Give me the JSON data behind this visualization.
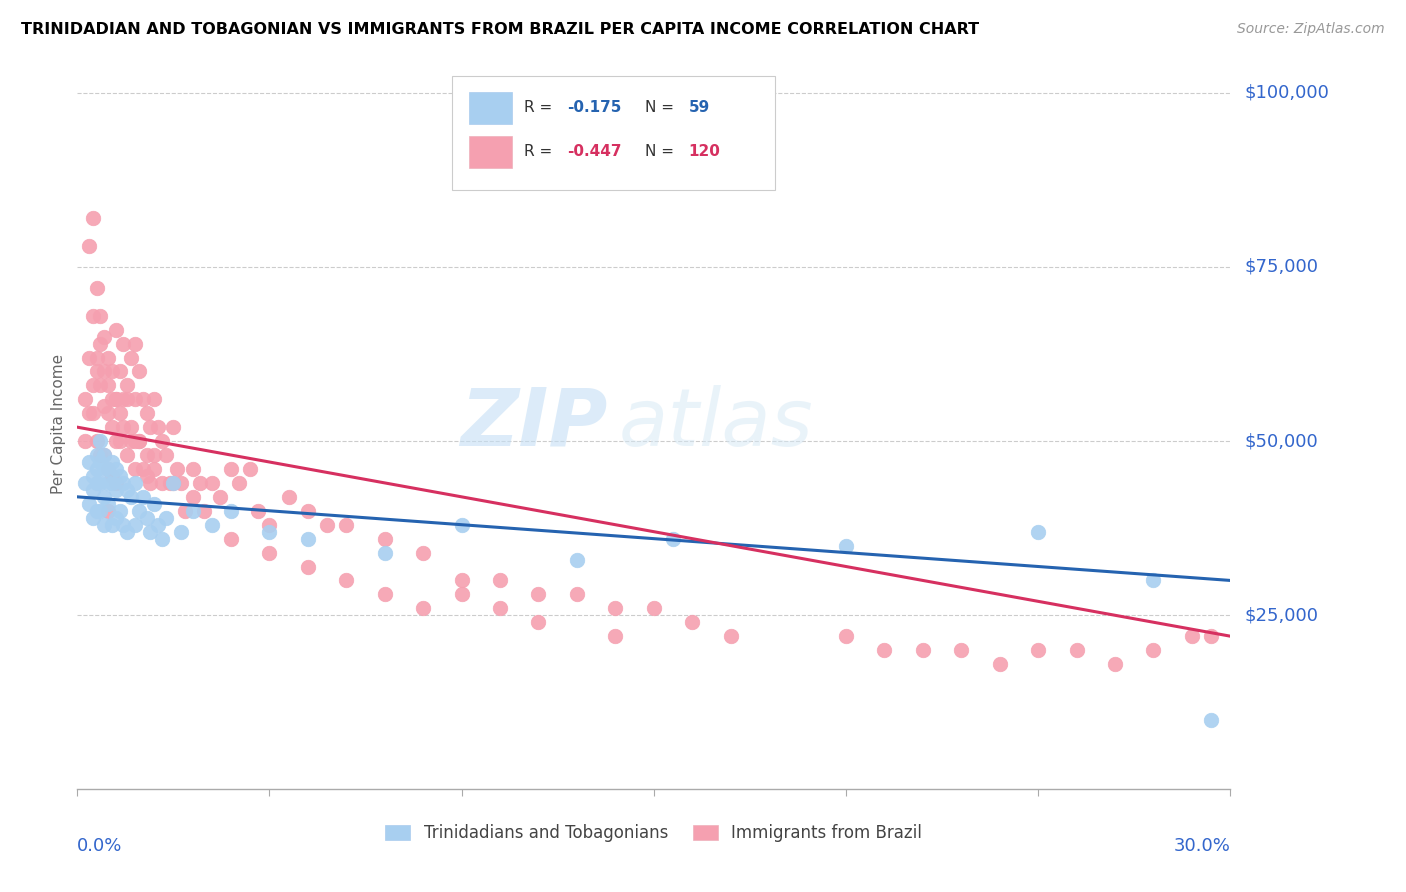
{
  "title": "TRINIDADIAN AND TOBAGONIAN VS IMMIGRANTS FROM BRAZIL PER CAPITA INCOME CORRELATION CHART",
  "source": "Source: ZipAtlas.com",
  "ylabel": "Per Capita Income",
  "xmin": 0.0,
  "xmax": 0.3,
  "ymin": 0,
  "ymax": 105000,
  "color_blue": "#a8cff0",
  "color_pink": "#f5a0b0",
  "line_blue": "#2563b0",
  "line_pink": "#d63060",
  "legend_label_blue": "Trinidadians and Tobagonians",
  "legend_label_pink": "Immigrants from Brazil",
  "watermark_zip": "ZIP",
  "watermark_atlas": "atlas",
  "blue_intercept": 42000,
  "blue_slope": -40000,
  "pink_intercept": 52000,
  "pink_slope": -100000,
  "blue_scatter_x": [
    0.002,
    0.003,
    0.003,
    0.004,
    0.004,
    0.004,
    0.005,
    0.005,
    0.005,
    0.005,
    0.006,
    0.006,
    0.006,
    0.006,
    0.007,
    0.007,
    0.007,
    0.007,
    0.008,
    0.008,
    0.008,
    0.009,
    0.009,
    0.009,
    0.01,
    0.01,
    0.01,
    0.011,
    0.011,
    0.012,
    0.012,
    0.013,
    0.013,
    0.014,
    0.015,
    0.015,
    0.016,
    0.017,
    0.018,
    0.019,
    0.02,
    0.021,
    0.022,
    0.023,
    0.025,
    0.027,
    0.03,
    0.035,
    0.04,
    0.05,
    0.06,
    0.08,
    0.1,
    0.13,
    0.155,
    0.2,
    0.25,
    0.28,
    0.295
  ],
  "blue_scatter_y": [
    44000,
    47000,
    41000,
    45000,
    43000,
    39000,
    48000,
    46000,
    44000,
    40000,
    50000,
    47000,
    44000,
    40000,
    48000,
    46000,
    42000,
    38000,
    46000,
    44000,
    41000,
    47000,
    44000,
    38000,
    46000,
    43000,
    39000,
    45000,
    40000,
    44000,
    38000,
    43000,
    37000,
    42000,
    44000,
    38000,
    40000,
    42000,
    39000,
    37000,
    41000,
    38000,
    36000,
    39000,
    44000,
    37000,
    40000,
    38000,
    40000,
    37000,
    36000,
    34000,
    38000,
    33000,
    36000,
    35000,
    37000,
    30000,
    10000
  ],
  "pink_scatter_x": [
    0.002,
    0.002,
    0.003,
    0.003,
    0.004,
    0.004,
    0.004,
    0.005,
    0.005,
    0.005,
    0.006,
    0.006,
    0.006,
    0.007,
    0.007,
    0.007,
    0.008,
    0.008,
    0.008,
    0.008,
    0.009,
    0.009,
    0.009,
    0.01,
    0.01,
    0.01,
    0.01,
    0.011,
    0.011,
    0.012,
    0.012,
    0.013,
    0.013,
    0.014,
    0.014,
    0.015,
    0.015,
    0.015,
    0.016,
    0.016,
    0.017,
    0.017,
    0.018,
    0.018,
    0.019,
    0.019,
    0.02,
    0.02,
    0.021,
    0.022,
    0.022,
    0.023,
    0.024,
    0.025,
    0.026,
    0.027,
    0.028,
    0.03,
    0.032,
    0.033,
    0.035,
    0.037,
    0.04,
    0.042,
    0.045,
    0.047,
    0.05,
    0.055,
    0.06,
    0.065,
    0.07,
    0.08,
    0.09,
    0.1,
    0.11,
    0.12,
    0.13,
    0.14,
    0.15,
    0.16,
    0.003,
    0.004,
    0.005,
    0.006,
    0.007,
    0.008,
    0.009,
    0.01,
    0.011,
    0.012,
    0.013,
    0.014,
    0.015,
    0.016,
    0.018,
    0.02,
    0.025,
    0.03,
    0.04,
    0.05,
    0.06,
    0.07,
    0.08,
    0.09,
    0.1,
    0.11,
    0.12,
    0.14,
    0.17,
    0.2,
    0.21,
    0.22,
    0.23,
    0.24,
    0.25,
    0.26,
    0.27,
    0.28,
    0.29,
    0.295
  ],
  "pink_scatter_y": [
    56000,
    50000,
    78000,
    62000,
    82000,
    68000,
    54000,
    72000,
    60000,
    50000,
    68000,
    58000,
    48000,
    65000,
    55000,
    48000,
    62000,
    54000,
    46000,
    40000,
    60000,
    52000,
    45000,
    66000,
    56000,
    50000,
    44000,
    60000,
    50000,
    64000,
    52000,
    58000,
    48000,
    62000,
    50000,
    64000,
    56000,
    46000,
    60000,
    50000,
    56000,
    46000,
    54000,
    45000,
    52000,
    44000,
    56000,
    46000,
    52000,
    50000,
    44000,
    48000,
    44000,
    52000,
    46000,
    44000,
    40000,
    46000,
    44000,
    40000,
    44000,
    42000,
    46000,
    44000,
    46000,
    40000,
    38000,
    42000,
    40000,
    38000,
    38000,
    36000,
    34000,
    30000,
    30000,
    28000,
    28000,
    26000,
    26000,
    24000,
    54000,
    58000,
    62000,
    64000,
    60000,
    58000,
    56000,
    56000,
    54000,
    56000,
    56000,
    52000,
    50000,
    50000,
    48000,
    48000,
    44000,
    42000,
    36000,
    34000,
    32000,
    30000,
    28000,
    26000,
    28000,
    26000,
    24000,
    22000,
    22000,
    22000,
    20000,
    20000,
    20000,
    18000,
    20000,
    20000,
    18000,
    20000,
    22000,
    22000
  ]
}
